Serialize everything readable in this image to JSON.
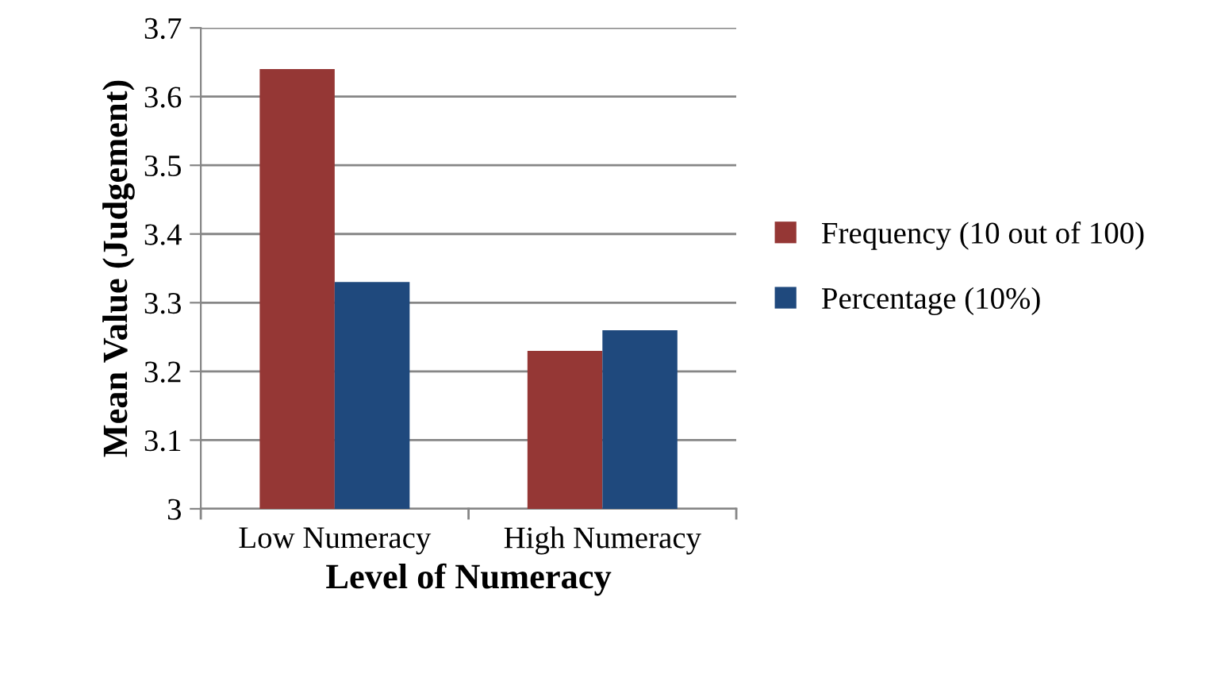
{
  "chart_data": {
    "type": "bar",
    "xlabel": "Level of Numeracy",
    "ylabel": "Mean Value (Judgement)",
    "categories": [
      "Low Numeracy",
      "High Numeracy"
    ],
    "series": [
      {
        "name": "Frequency (10 out of 100)",
        "color": "#953735",
        "values": [
          3.64,
          3.23
        ]
      },
      {
        "name": "Percentage (10%)",
        "color": "#1f497d",
        "values": [
          3.33,
          3.26
        ]
      }
    ],
    "ylim": [
      3,
      3.7
    ],
    "yticks": [
      3,
      3.1,
      3.2,
      3.3,
      3.4,
      3.5,
      3.6,
      3.7
    ],
    "grid": "y",
    "legend": "right"
  }
}
